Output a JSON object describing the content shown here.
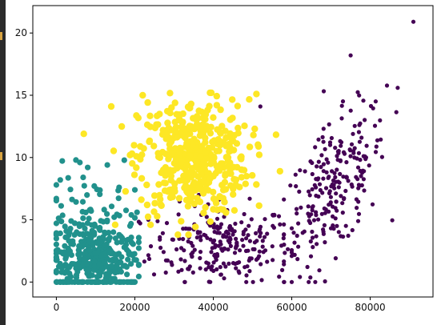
{
  "chart_data": {
    "type": "scatter",
    "title": "",
    "xlabel": "",
    "ylabel": "",
    "xlim": [
      -6000,
      96000
    ],
    "ylim": [
      -1.2,
      22.2
    ],
    "xticks": [
      0,
      20000,
      40000,
      60000,
      80000
    ],
    "yticks": [
      0,
      5,
      10,
      15,
      20
    ],
    "xtick_labels": [
      "0",
      "20000",
      "40000",
      "60000",
      "80000"
    ],
    "ytick_labels": [
      "0",
      "5",
      "10",
      "15",
      "20"
    ],
    "grid": false,
    "legend": "none",
    "series": [
      {
        "color": "#21918c",
        "description_count": 420,
        "cluster": {
          "x_mean": 10000,
          "x_sd": 5500,
          "x_min": 0,
          "x_max": 21000,
          "y_mean": 3.2,
          "y_sd": 2.4,
          "y_min": 0,
          "y_max": 9.9,
          "zero_rows": 60
        },
        "samples": [
          [
            0,
            0
          ],
          [
            2000,
            0
          ],
          [
            4000,
            0
          ],
          [
            6000,
            0
          ],
          [
            8000,
            0
          ],
          [
            10000,
            0
          ],
          [
            12000,
            0
          ],
          [
            14000,
            0
          ],
          [
            16000,
            0
          ],
          [
            18000,
            0
          ],
          [
            20000,
            0
          ],
          [
            1000,
            8.2
          ],
          [
            5000,
            9.8
          ],
          [
            6000,
            9.6
          ],
          [
            8000,
            9.2
          ],
          [
            13000,
            9.4
          ],
          [
            16000,
            7.6
          ],
          [
            20000,
            7.4
          ],
          [
            0,
            7.8
          ]
        ]
      },
      {
        "color": "#440154",
        "description_count": 470,
        "clusters": [
          {
            "x_mean": 42000,
            "x_sd": 9000,
            "x_min": 21000,
            "x_max": 60000,
            "y_mean": 3.0,
            "y_sd": 1.6,
            "y_min": 0,
            "y_max": 7.5
          },
          {
            "x_mean": 71000,
            "x_sd": 6500,
            "x_min": 58000,
            "x_max": 87000,
            "y_mean": 9.5,
            "y_sd": 3.4,
            "y_min": 0,
            "y_max": 18.2
          }
        ],
        "samples": [
          [
            91000,
            20.9
          ],
          [
            87000,
            15.6
          ],
          [
            75000,
            18.2
          ],
          [
            66000,
            0
          ],
          [
            52000,
            14.1
          ],
          [
            48000,
            1.2
          ],
          [
            42000,
            0.6
          ]
        ]
      },
      {
        "color": "#fde725",
        "description_count": 440,
        "cluster": {
          "x_mean": 35000,
          "x_sd": 7000,
          "x_min": 14000,
          "x_max": 56000,
          "y_mean": 10.0,
          "y_sd": 2.3,
          "y_min": 3.8,
          "y_max": 15.2
        },
        "samples": [
          [
            7000,
            11.9
          ],
          [
            14000,
            14.1
          ],
          [
            22000,
            15.0
          ],
          [
            51000,
            15.1
          ],
          [
            15000,
            4.6
          ],
          [
            24000,
            4.6
          ],
          [
            57000,
            8.9
          ]
        ]
      }
    ]
  }
}
